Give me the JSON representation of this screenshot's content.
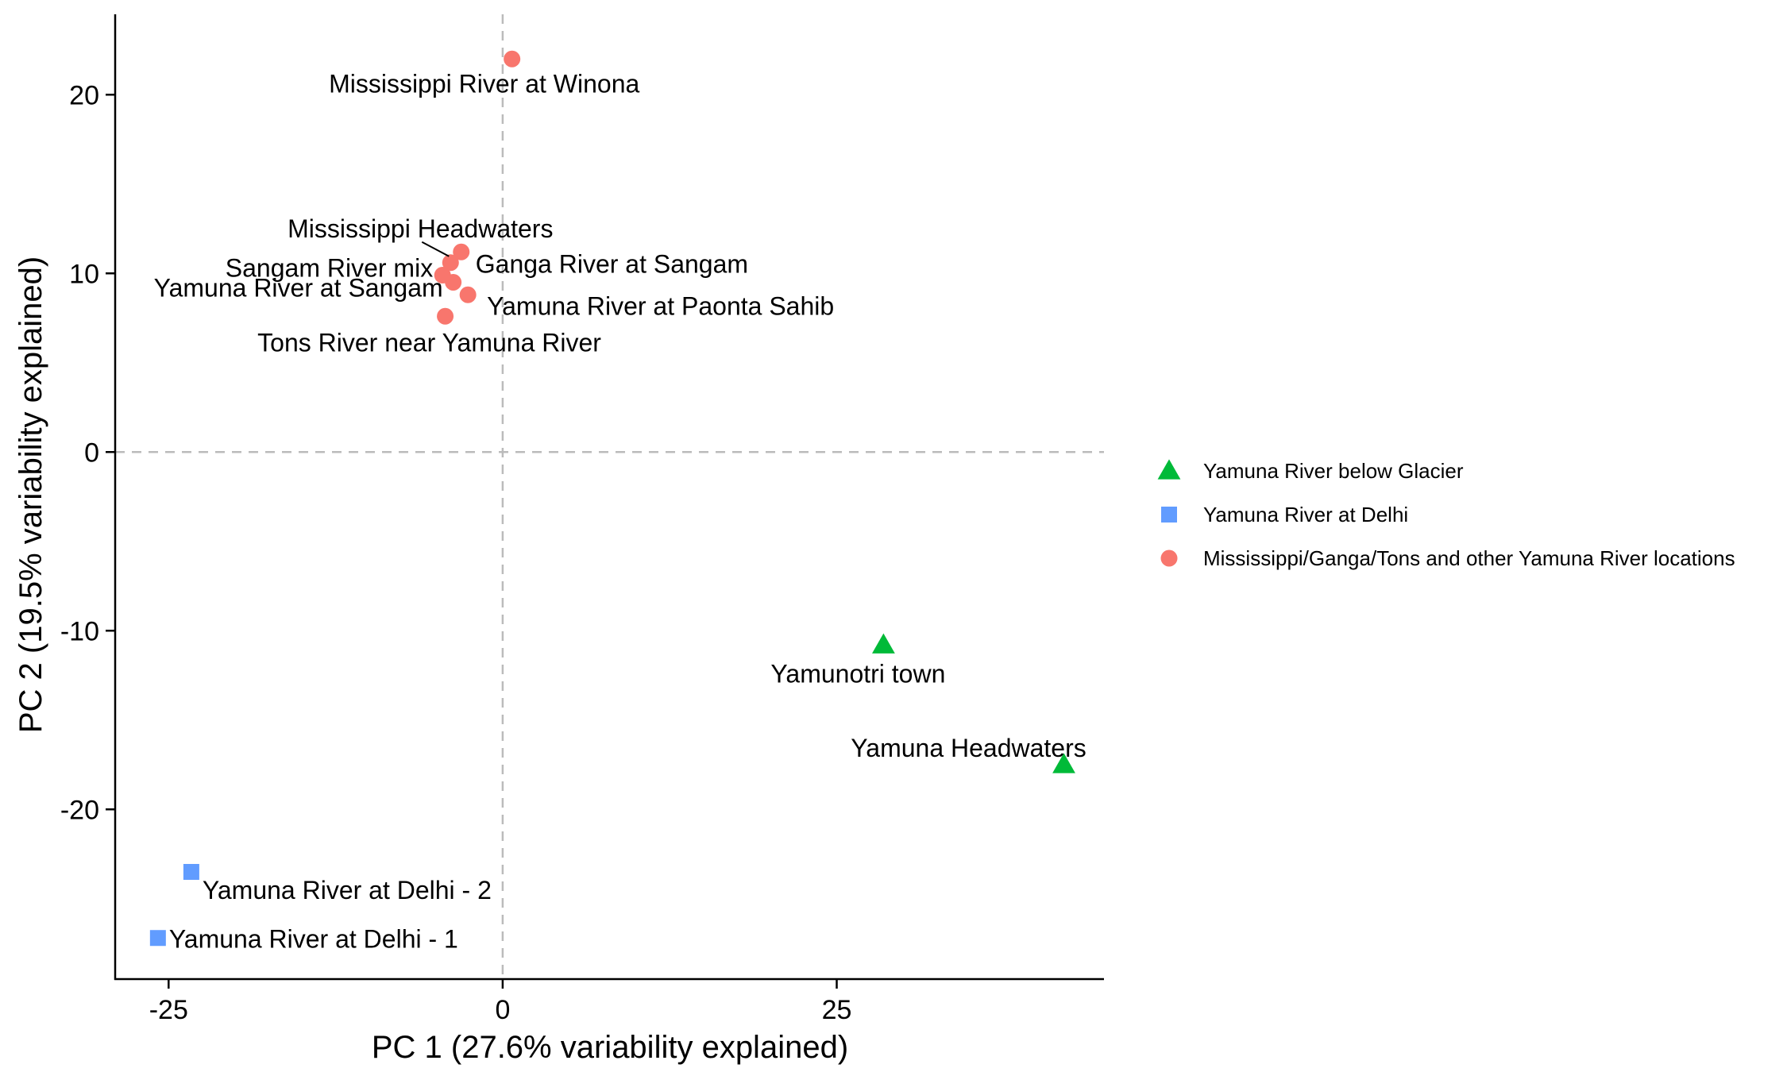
{
  "chart_data": {
    "type": "scatter",
    "xlabel": "PC 1 (27.6% variability explained)",
    "ylabel": "PC 2 (19.5% variability explained)",
    "xlim": [
      -29,
      45
    ],
    "ylim": [
      -29.5,
      24.5
    ],
    "xticks": [
      -25,
      0,
      25
    ],
    "yticks": [
      -20,
      -10,
      0,
      10,
      20
    ],
    "grid": false,
    "reference_lines": {
      "x": 0,
      "y": 0,
      "style": "dashed"
    },
    "legend_position": "right",
    "colors": {
      "glacier": "#00ba38",
      "delhi": "#619cff",
      "other": "#f8766d"
    },
    "series": [
      {
        "key": "glacier",
        "name": "Yamuna River below Glacier",
        "shape": "triangle",
        "points": [
          {
            "label": "Yamunotri town",
            "x": 28.5,
            "y": -10.8
          },
          {
            "label": "Yamuna Headwaters",
            "x": 42,
            "y": -17.5
          }
        ]
      },
      {
        "key": "delhi",
        "name": "Yamuna River at Delhi",
        "shape": "square",
        "points": [
          {
            "label": "Yamuna River at Delhi - 2",
            "x": -23.3,
            "y": -23.5
          },
          {
            "label": "Yamuna River at Delhi - 1",
            "x": -25.8,
            "y": -27.2
          }
        ]
      },
      {
        "key": "other",
        "name": "Mississippi/Ganga/Tons and other Yamuna River locations",
        "shape": "circle",
        "points": [
          {
            "label": "Mississippi River at Winona",
            "x": 0.7,
            "y": 22
          },
          {
            "label": "Mississippi Headwaters",
            "x": -3.9,
            "y": 10.6
          },
          {
            "label": "Ganga River at Sangam",
            "x": -3.1,
            "y": 11.2
          },
          {
            "label": "Sangam River mix",
            "x": -4.5,
            "y": 9.9
          },
          {
            "label": "Yamuna River at Paonta Sahib",
            "x": -2.6,
            "y": 8.8
          },
          {
            "label": "Yamuna River at Sangam",
            "x": -3.7,
            "y": 9.5
          },
          {
            "label": "Tons River near Yamuna River",
            "x": -4.3,
            "y": 7.6
          }
        ]
      }
    ]
  }
}
